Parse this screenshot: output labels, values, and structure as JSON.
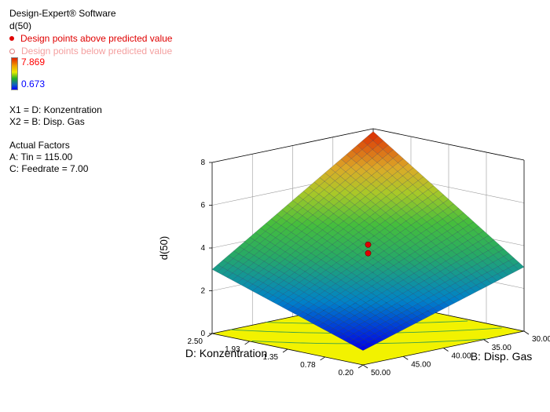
{
  "header": {
    "software": "Design-Expert® Software",
    "response": "d(50)"
  },
  "legend": {
    "above": "Design points above predicted value",
    "below": "Design points below predicted value",
    "above_color": "#e00000",
    "below_color": "#f4a0a0",
    "max_label": "7.869",
    "min_label": "0.673",
    "max_color": "#ff0000",
    "min_color": "#0000ff"
  },
  "factors": {
    "x1": "X1 = D: Konzentration",
    "x2": "X2 = B: Disp. Gas",
    "actual_title": "Actual Factors",
    "actual_a": "A: Tin = 115.00",
    "actual_c": "C: Feedrate = 7.00"
  },
  "chart_data": {
    "type": "surface",
    "zlabel": "d(50)",
    "xlabel": "D: Konzentration",
    "ylabel": "B: Disp. Gas",
    "z_ticks": [
      "0",
      "2",
      "4",
      "6",
      "8"
    ],
    "x_ticks": [
      "0.20",
      "0.78",
      "1.35",
      "1.93",
      "2.50"
    ],
    "y_ticks": [
      "50.00",
      "45.00",
      "40.00",
      "35.00",
      "30.00"
    ],
    "zlim": [
      0,
      8
    ],
    "xlim": [
      0.2,
      2.5
    ],
    "ylim": [
      30,
      50
    ],
    "surface_corners": {
      "konz_0.20_gas_50": 0.673,
      "konz_2.50_gas_50": 3.0,
      "konz_0.20_gas_30": 3.0,
      "konz_2.50_gas_30": 7.869
    },
    "design_points": [
      {
        "konz": 1.35,
        "gas": 40.0,
        "d50": 4.1,
        "position": "above"
      },
      {
        "konz": 1.35,
        "gas": 40.0,
        "d50": 3.7,
        "position": "above"
      }
    ],
    "colormap": "blue-green-yellow-red",
    "floor_contours": true
  }
}
